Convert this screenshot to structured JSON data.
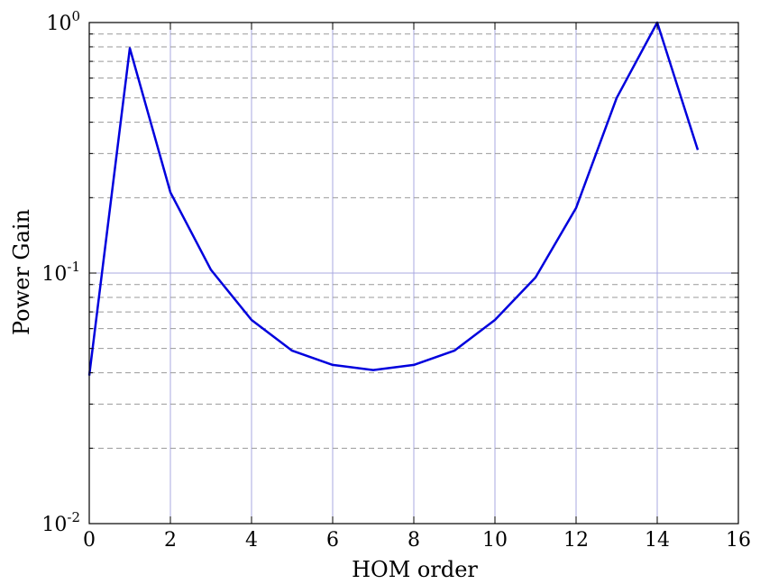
{
  "chart_data": {
    "type": "line",
    "xlabel": "HOM order",
    "ylabel": "Power Gain",
    "xlim": [
      0,
      16
    ],
    "ylim": [
      0.01,
      1
    ],
    "y_scale": "log",
    "x_ticks": [
      "0",
      "2",
      "4",
      "6",
      "8",
      "10",
      "12",
      "14",
      "16"
    ],
    "y_ticks": [
      {
        "base": "10",
        "exp": "-2",
        "value": 0.01
      },
      {
        "base": "10",
        "exp": "-1",
        "value": 0.1
      },
      {
        "base": "10",
        "exp": "0",
        "value": 1
      }
    ],
    "grid": true,
    "series": [
      {
        "color": "#0000dd",
        "x": [
          0,
          1,
          2,
          3,
          4,
          5,
          6,
          7,
          8,
          9,
          10,
          11,
          12,
          13,
          14,
          15
        ],
        "y": [
          0.039,
          0.79,
          0.21,
          0.103,
          0.065,
          0.049,
          0.043,
          0.041,
          0.043,
          0.049,
          0.065,
          0.096,
          0.182,
          0.5,
          1.0,
          0.31
        ]
      }
    ]
  }
}
